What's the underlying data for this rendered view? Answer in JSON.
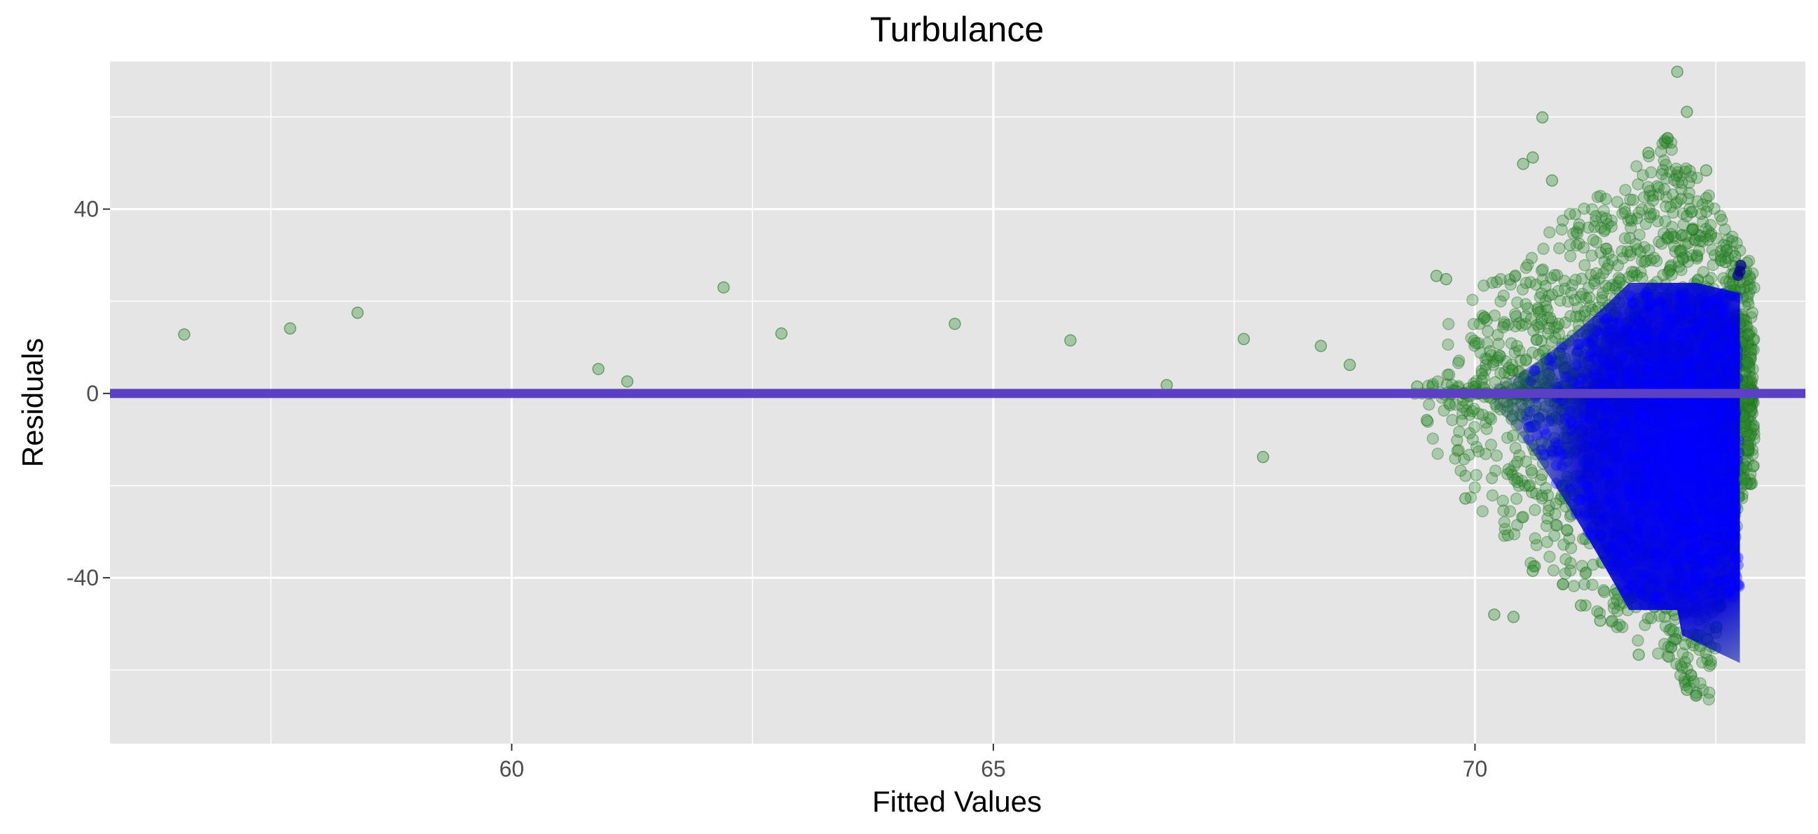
{
  "chart_data": {
    "type": "scatter",
    "title": "Turbulance",
    "xlabel": "Fitted Values",
    "ylabel": "Residuals",
    "xlim": [
      55.83,
      73.43
    ],
    "ylim": [
      -76,
      72
    ],
    "x_ticks": [
      60,
      65,
      70
    ],
    "x_tick_labels": [
      "60",
      "65",
      "70"
    ],
    "y_ticks": [
      -40,
      0,
      40
    ],
    "y_tick_labels": [
      "-40",
      "0",
      "40"
    ],
    "grid": true,
    "background": "#e5e5e5",
    "grid_color": "#ffffff",
    "colors": {
      "points": "#2e8b2e",
      "dense_points": "#0000ff",
      "reference_line": "#5b3fc4"
    },
    "reference_line": {
      "y": 0
    },
    "points": [
      [
        56.6,
        12.8
      ],
      [
        57.7,
        14.1
      ],
      [
        58.4,
        17.5
      ],
      [
        60.9,
        5.3
      ],
      [
        61.2,
        2.6
      ],
      [
        62.2,
        23.0
      ],
      [
        62.8,
        13.0
      ],
      [
        64.6,
        15.1
      ],
      [
        65.8,
        11.5
      ],
      [
        66.8,
        1.8
      ],
      [
        67.6,
        11.8
      ],
      [
        67.8,
        -13.8
      ],
      [
        68.4,
        10.3
      ],
      [
        68.7,
        6.2
      ],
      [
        69.4,
        1.5
      ],
      [
        69.5,
        -5.8
      ],
      [
        69.6,
        25.5
      ],
      [
        69.7,
        24.8
      ],
      [
        69.9,
        -22.8
      ],
      [
        70.1,
        16.5
      ],
      [
        70.2,
        -48.0
      ],
      [
        70.4,
        -48.5
      ],
      [
        70.5,
        49.8
      ],
      [
        70.6,
        51.2
      ],
      [
        70.6,
        -38.5
      ],
      [
        70.7,
        59.9
      ],
      [
        70.8,
        46.2
      ],
      [
        71.1,
        -46.0
      ],
      [
        71.3,
        -49.3
      ],
      [
        71.7,
        -56.7
      ],
      [
        71.8,
        52.2
      ],
      [
        72.1,
        69.8
      ],
      [
        72.2,
        61.1
      ],
      [
        72.4,
        48.4
      ],
      [
        72.2,
        -64.3
      ],
      [
        72.6,
        28.5
      ],
      [
        72.7,
        29.8
      ],
      [
        72.8,
        26.2
      ],
      [
        72.8,
        -18.6
      ]
    ],
    "dense_region": {
      "description_x_range": [
        69.3,
        72.9
      ],
      "upper_envelope": [
        [
          69.3,
          14
        ],
        [
          70.0,
          22
        ],
        [
          70.5,
          30
        ],
        [
          71.0,
          40
        ],
        [
          71.5,
          46
        ],
        [
          72.0,
          56
        ],
        [
          72.4,
          44
        ],
        [
          72.8,
          30
        ]
      ],
      "lower_envelope": [
        [
          69.3,
          -6
        ],
        [
          70.0,
          -24
        ],
        [
          70.5,
          -36
        ],
        [
          71.0,
          -44
        ],
        [
          71.5,
          -52
        ],
        [
          72.0,
          -58
        ],
        [
          72.4,
          -70
        ],
        [
          72.8,
          -20
        ]
      ]
    }
  }
}
